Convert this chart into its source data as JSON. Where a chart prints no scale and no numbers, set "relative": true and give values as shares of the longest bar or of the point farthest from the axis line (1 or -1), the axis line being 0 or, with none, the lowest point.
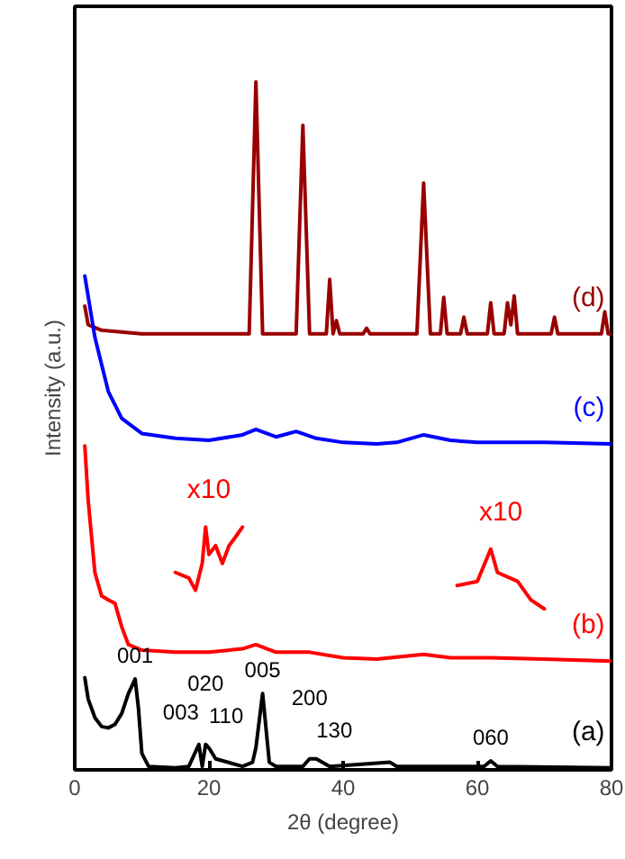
{
  "chart_data": {
    "type": "line",
    "relative": true,
    "xlabel": "2θ (degree)",
    "ylabel": "Intensity (a.u.)",
    "x": [
      1.5,
      2,
      4,
      10,
      26,
      27,
      28,
      33,
      34,
      35,
      37.5,
      38,
      38.5,
      39,
      39.5,
      43,
      43.5,
      44,
      51,
      52,
      53,
      54.5,
      55,
      55.5,
      57.5,
      58,
      58.5,
      61.5,
      62,
      62.5,
      64,
      64.5,
      65,
      65.5,
      66,
      71,
      71.5,
      72,
      78.5,
      79,
      79.5,
      80
    ],
    "xlim": [
      0,
      80
    ],
    "xticks": [
      0,
      20,
      40,
      60,
      80
    ],
    "grid": false,
    "line_style": "solid",
    "marker": "none",
    "series": [
      {
        "name": "(d)",
        "color": "#990000",
        "values": [
          0.674,
          0.647,
          0.639,
          0.634,
          0.634,
          1.0,
          0.634,
          0.634,
          0.937,
          0.634,
          0.634,
          0.713,
          0.634,
          0.653,
          0.634,
          0.634,
          0.642,
          0.634,
          0.634,
          0.853,
          0.634,
          0.634,
          0.687,
          0.634,
          0.634,
          0.658,
          0.634,
          0.634,
          0.679,
          0.634,
          0.634,
          0.679,
          0.647,
          0.689,
          0.634,
          0.634,
          0.658,
          0.634,
          0.634,
          0.666,
          0.634,
          0.634
        ]
      },
      {
        "name": "(c)",
        "color": "#0000ff",
        "x": [
          1.5,
          3,
          5,
          7,
          10,
          15,
          20,
          25,
          27,
          30,
          33,
          36,
          40,
          45,
          48,
          52,
          56,
          60,
          70,
          80
        ],
        "values": [
          0.718,
          0.629,
          0.55,
          0.511,
          0.489,
          0.482,
          0.479,
          0.487,
          0.495,
          0.484,
          0.492,
          0.482,
          0.476,
          0.474,
          0.476,
          0.487,
          0.479,
          0.476,
          0.476,
          0.474
        ]
      },
      {
        "name": "(b)",
        "color": "#ff0000",
        "x": [
          1.5,
          2,
          3,
          4,
          5,
          6,
          7,
          8,
          10,
          15,
          20,
          25,
          27,
          30,
          35,
          40,
          45,
          50,
          52,
          56,
          62,
          70,
          80
        ],
        "values": [
          0.471,
          0.392,
          0.287,
          0.253,
          0.247,
          0.242,
          0.208,
          0.182,
          0.174,
          0.171,
          0.171,
          0.176,
          0.182,
          0.171,
          0.171,
          0.163,
          0.161,
          0.166,
          0.168,
          0.163,
          0.163,
          0.161,
          0.158
        ]
      },
      {
        "color": "#ff0000",
        "x": [
          15,
          17,
          18,
          19,
          19.5,
          20,
          21,
          22,
          23,
          24,
          25
        ],
        "values": [
          0.287,
          0.279,
          0.261,
          0.3,
          0.353,
          0.313,
          0.326,
          0.3,
          0.326,
          0.339,
          0.353
        ]
      },
      {
        "color": "#ff0000",
        "x": [
          57,
          60,
          62,
          63,
          66,
          68,
          70
        ],
        "values": [
          0.268,
          0.274,
          0.321,
          0.287,
          0.274,
          0.247,
          0.234
        ]
      },
      {
        "name": "(a)",
        "color": "#000000",
        "x": [
          1.5,
          2,
          3,
          4,
          5,
          6,
          7,
          8,
          9,
          9.5,
          10,
          11,
          15,
          17,
          18.5,
          19,
          19.5,
          20,
          21,
          25,
          26.5,
          27,
          28,
          29,
          30,
          34,
          35,
          36,
          38,
          47,
          48,
          61,
          62,
          63,
          80
        ],
        "values": [
          0.134,
          0.103,
          0.076,
          0.063,
          0.061,
          0.066,
          0.082,
          0.111,
          0.132,
          0.089,
          0.024,
          0.005,
          0.003,
          0.005,
          0.037,
          0.005,
          0.037,
          0.032,
          0.016,
          0.005,
          0.011,
          0.032,
          0.111,
          0.011,
          0.005,
          0.005,
          0.016,
          0.016,
          0.005,
          0.011,
          0.005,
          0.005,
          0.013,
          0.005,
          0.003
        ]
      }
    ],
    "annotations": [
      "x10",
      "x10",
      {
        "text": "001",
        "x": 9,
        "y": 0.132
      },
      {
        "text": "003",
        "x": 18.5,
        "y": 0.037
      },
      {
        "text": "020",
        "x": 19.5,
        "y": 0.037
      },
      {
        "text": "110",
        "x": 20,
        "y": 0.032
      },
      {
        "text": "005",
        "x": 28,
        "y": 0.111
      },
      {
        "text": "200",
        "x": 35,
        "y": 0.016
      },
      {
        "text": "130",
        "x": 36,
        "y": 0.016
      },
      {
        "text": "060",
        "x": 62,
        "y": 0.013
      }
    ]
  }
}
